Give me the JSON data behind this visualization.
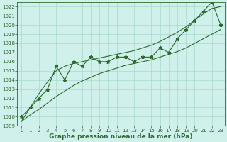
{
  "x": [
    0,
    1,
    2,
    3,
    4,
    5,
    6,
    7,
    8,
    9,
    10,
    11,
    12,
    13,
    14,
    15,
    16,
    17,
    18,
    19,
    20,
    21,
    22,
    23
  ],
  "y": [
    1010.0,
    1011.0,
    1012.0,
    1013.0,
    1015.5,
    1014.0,
    1016.0,
    1015.5,
    1016.5,
    1016.0,
    1016.0,
    1016.5,
    1016.5,
    1016.0,
    1016.5,
    1016.5,
    1017.5,
    1017.0,
    1018.5,
    1019.5,
    1020.5,
    1021.5,
    1022.5,
    1020.0
  ],
  "y_lower": [
    1009.5,
    1010.2,
    1010.8,
    1011.5,
    1012.2,
    1012.8,
    1013.4,
    1013.9,
    1014.3,
    1014.7,
    1015.0,
    1015.3,
    1015.6,
    1015.8,
    1016.0,
    1016.2,
    1016.5,
    1016.8,
    1017.1,
    1017.5,
    1018.0,
    1018.5,
    1019.0,
    1019.5
  ],
  "y_upper": [
    1009.5,
    1011.0,
    1012.5,
    1013.8,
    1015.0,
    1015.5,
    1015.8,
    1016.0,
    1016.2,
    1016.4,
    1016.6,
    1016.8,
    1017.0,
    1017.2,
    1017.5,
    1017.8,
    1018.2,
    1018.7,
    1019.2,
    1019.8,
    1020.5,
    1021.2,
    1021.8,
    1022.0
  ],
  "ylim": [
    1009,
    1022.5
  ],
  "xlim": [
    -0.5,
    23.5
  ],
  "yticks": [
    1009,
    1010,
    1011,
    1012,
    1013,
    1014,
    1015,
    1016,
    1017,
    1018,
    1019,
    1020,
    1021,
    1022
  ],
  "xticks": [
    0,
    1,
    2,
    3,
    4,
    5,
    6,
    7,
    8,
    9,
    10,
    11,
    12,
    13,
    14,
    15,
    16,
    17,
    18,
    19,
    20,
    21,
    22,
    23
  ],
  "xlabel": "Graphe pression niveau de la mer (hPa)",
  "line_color": "#2d6a2d",
  "bg_color": "#cff0eb",
  "grid_color": "#a8d8cc",
  "marker": "*",
  "marker_size": 3.5,
  "linewidth": 0.8,
  "tick_fontsize": 5,
  "label_fontsize": 6.5
}
